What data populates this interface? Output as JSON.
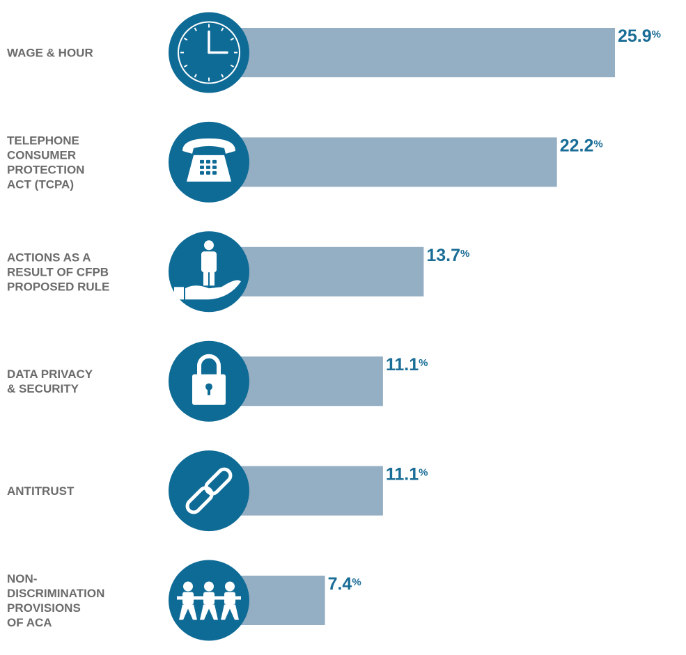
{
  "colors": {
    "bar": "#94aec3",
    "circle": "#0e6b96",
    "value_text": "#1a6d96",
    "label_text": "#6b6b6b",
    "icon": "#ffffff"
  },
  "chart_data": {
    "type": "bar",
    "orientation": "horizontal",
    "categories": [
      [
        "WAGE & HOUR"
      ],
      [
        "TELEPHONE",
        "CONSUMER",
        "PROTECTION",
        "ACT (TCPA)"
      ],
      [
        "ACTIONS AS A",
        "RESULT OF CFPB",
        "PROPOSED RULE"
      ],
      [
        "DATA PRIVACY",
        "& SECURITY"
      ],
      [
        "ANTITRUST"
      ],
      [
        "NON-",
        "DISCRIMINATION",
        "PROVISIONS",
        "OF ACA"
      ]
    ],
    "values": [
      25.9,
      22.2,
      13.7,
      11.1,
      11.1,
      7.4
    ],
    "value_labels": [
      "25.9",
      "22.2",
      "13.7",
      "11.1",
      "11.1",
      "7.4"
    ],
    "unit": "%",
    "icons": [
      "clock-icon",
      "telephone-icon",
      "person-in-hand-icon",
      "padlock-icon",
      "chain-link-icon",
      "people-group-icon"
    ],
    "xlim": [
      0,
      25.9
    ],
    "grid": false,
    "legend": "none"
  }
}
